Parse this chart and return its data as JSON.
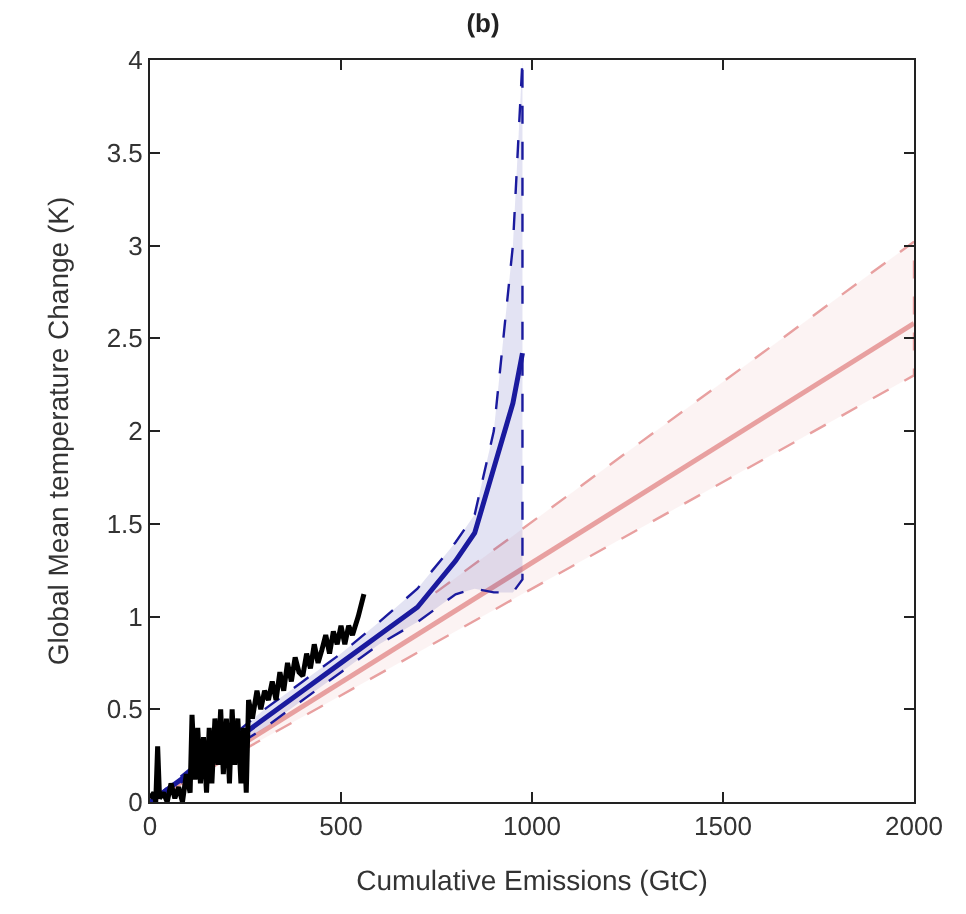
{
  "chart_data": {
    "type": "line",
    "title": "(b)",
    "xlabel": "Cumulative Emissions (GtC)",
    "ylabel": "Global Mean temperature Change (K)",
    "xlim": [
      0,
      2000
    ],
    "xticks": [
      0,
      500,
      1000,
      1500,
      2000
    ],
    "ylim": [
      0,
      4
    ],
    "yticks": [
      0,
      0.5,
      1,
      1.5,
      2,
      2.5,
      3,
      3.5,
      4
    ],
    "series": [
      {
        "color": "#e8a0a0",
        "x": [
          0,
          2000
        ],
        "values": [
          0,
          2.58
        ],
        "lower": [
          0,
          2.3
        ],
        "upper": [
          0,
          3.02
        ]
      },
      {
        "color": "#1a1a9e",
        "x": [
          0,
          100,
          200,
          300,
          400,
          500,
          600,
          700,
          800,
          850,
          900,
          950,
          975
        ],
        "values": [
          0,
          0.15,
          0.3,
          0.45,
          0.6,
          0.75,
          0.9,
          1.05,
          1.3,
          1.45,
          1.8,
          2.15,
          2.42
        ],
        "lower": [
          0,
          0.13,
          0.27,
          0.4,
          0.55,
          0.7,
          0.85,
          0.97,
          1.12,
          1.15,
          1.13,
          1.13,
          1.2
        ],
        "upper": [
          0,
          0.17,
          0.33,
          0.5,
          0.65,
          0.8,
          0.97,
          1.15,
          1.4,
          1.55,
          2.0,
          3.0,
          4.0
        ]
      },
      {
        "color": "#000000",
        "x": [
          0,
          10,
          15,
          20,
          25,
          35,
          45,
          55,
          65,
          75,
          85,
          95,
          105,
          110,
          118,
          125,
          132,
          140,
          148,
          155,
          162,
          170,
          178,
          185,
          192,
          200,
          208,
          215,
          222,
          230,
          238,
          245,
          252,
          258,
          268,
          280,
          290,
          300,
          310,
          320,
          330,
          340,
          350,
          360,
          370,
          380,
          390,
          400,
          410,
          420,
          430,
          440,
          450,
          460,
          470,
          480,
          490,
          500,
          510,
          520,
          530,
          545,
          560
        ],
        "values": [
          0.02,
          0.05,
          0.0,
          0.3,
          0.02,
          0.05,
          0.0,
          0.1,
          0.02,
          0.08,
          0.0,
          0.15,
          0.05,
          0.47,
          0.12,
          0.4,
          0.1,
          0.35,
          0.05,
          0.4,
          0.1,
          0.45,
          0.2,
          0.5,
          0.15,
          0.45,
          0.1,
          0.5,
          0.2,
          0.45,
          0.1,
          0.4,
          0.05,
          0.55,
          0.45,
          0.6,
          0.5,
          0.6,
          0.55,
          0.65,
          0.55,
          0.7,
          0.6,
          0.75,
          0.65,
          0.78,
          0.7,
          0.68,
          0.8,
          0.72,
          0.85,
          0.75,
          0.82,
          0.9,
          0.8,
          0.92,
          0.85,
          0.95,
          0.85,
          0.95,
          0.9,
          1.0,
          1.12
        ]
      }
    ]
  }
}
